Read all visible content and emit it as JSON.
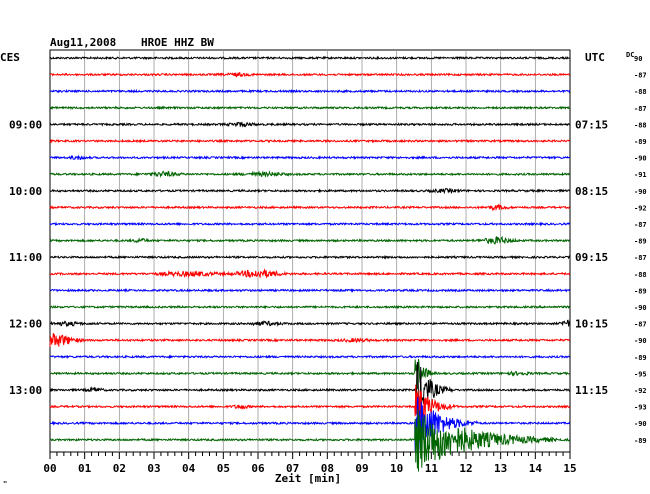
{
  "header": {
    "date": "Aug11,2008",
    "station": "HROE HHZ BW",
    "left_label": "CES",
    "right_label": "UTC",
    "right_extra": "DC",
    "footer_mark": "\""
  },
  "chart_data": {
    "type": "line",
    "title": "Aug11,2008   HROE HHZ BW",
    "xlabel": "Zeit [min]",
    "ylabel": "",
    "x_ticks": [
      "00",
      "01",
      "02",
      "03",
      "04",
      "05",
      "06",
      "07",
      "08",
      "09",
      "10",
      "11",
      "12",
      "13",
      "14",
      "15"
    ],
    "xlim": [
      0,
      15
    ],
    "grid": true,
    "trace_colors": [
      "#000000",
      "#ff0000",
      "#0000ff",
      "#006400"
    ],
    "left_time_labels": [
      {
        "row": 4,
        "label": "09:00"
      },
      {
        "row": 8,
        "label": "10:00"
      },
      {
        "row": 12,
        "label": "11:00"
      },
      {
        "row": 16,
        "label": "12:00"
      },
      {
        "row": 20,
        "label": "13:00"
      }
    ],
    "right_time_labels": [
      {
        "row": 4,
        "label": "07:15"
      },
      {
        "row": 8,
        "label": "08:15"
      },
      {
        "row": 12,
        "label": "09:15"
      },
      {
        "row": 16,
        "label": "10:15"
      },
      {
        "row": 20,
        "label": "11:15"
      }
    ],
    "right_values": [
      "90",
      "-87",
      "-88",
      "-87",
      "-88",
      "-89",
      "-90",
      "-91",
      "-90",
      "-92",
      "-87",
      "-89",
      "-87",
      "-88",
      "-89",
      "-90",
      "-87",
      "-90",
      "-89",
      "-95",
      "-92",
      "-93",
      "-90",
      "-89"
    ],
    "events": [
      {
        "row": 1,
        "minute": 5.4,
        "amp": 1.2,
        "dur": 0.5
      },
      {
        "row": 4,
        "minute": 5.5,
        "amp": 1.6,
        "dur": 0.5
      },
      {
        "row": 6,
        "minute": 0.8,
        "amp": 1.5,
        "dur": 0.3
      },
      {
        "row": 7,
        "minute": 3.3,
        "amp": 2.0,
        "dur": 0.6
      },
      {
        "row": 7,
        "minute": 6.2,
        "amp": 1.5,
        "dur": 0.8
      },
      {
        "row": 8,
        "minute": 11.4,
        "amp": 1.3,
        "dur": 0.6
      },
      {
        "row": 9,
        "minute": 12.9,
        "amp": 2.0,
        "dur": 0.4
      },
      {
        "row": 11,
        "minute": 2.6,
        "amp": 1.5,
        "dur": 0.3
      },
      {
        "row": 11,
        "minute": 12.9,
        "amp": 3.0,
        "dur": 0.6
      },
      {
        "row": 13,
        "minute": 4.0,
        "amp": 2.0,
        "dur": 1.2
      },
      {
        "row": 13,
        "minute": 6.0,
        "amp": 3.5,
        "dur": 0.9
      },
      {
        "row": 16,
        "minute": 0.5,
        "amp": 1.6,
        "dur": 0.6
      },
      {
        "row": 16,
        "minute": 6.2,
        "amp": 1.6,
        "dur": 0.6
      },
      {
        "row": 16,
        "minute": 14.9,
        "amp": 4.0,
        "dur": 0.2
      },
      {
        "row": 17,
        "minute": 0.1,
        "amp": 6.5,
        "dur": 0.8
      },
      {
        "row": 17,
        "minute": 8.8,
        "amp": 1.2,
        "dur": 0.6
      },
      {
        "row": 19,
        "minute": 13.5,
        "amp": 1.2,
        "dur": 0.5
      },
      {
        "row": 20,
        "minute": 1.3,
        "amp": 1.8,
        "dur": 0.3
      },
      {
        "row": 21,
        "minute": 5.5,
        "amp": 1.8,
        "dur": 0.3
      },
      {
        "row": 22,
        "minute": 11.0,
        "amp": 1.5,
        "dur": 0.5
      }
    ],
    "big_quake": {
      "minute": 10.55,
      "rows": [
        {
          "row": 19,
          "amp": 16,
          "dur": 0.2
        },
        {
          "row": 20,
          "amp": 28,
          "dur": 0.35
        },
        {
          "row": 21,
          "amp": 22,
          "dur": 0.4
        },
        {
          "row": 22,
          "amp": 30,
          "dur": 0.6
        },
        {
          "row": 23,
          "amp": 32,
          "dur": 1.4
        }
      ]
    }
  }
}
